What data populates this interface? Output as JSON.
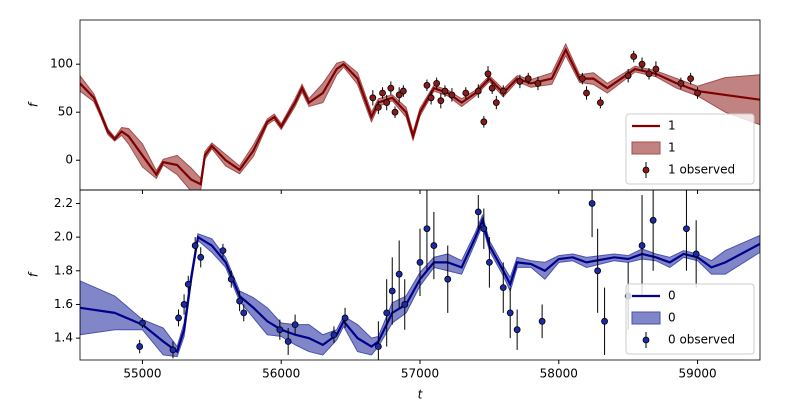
{
  "chart_data": [
    {
      "type": "line",
      "ylabel": "f",
      "xlim": [
        54550,
        59450
      ],
      "ylim": [
        -31,
        146
      ],
      "yticks": [
        0,
        50,
        100
      ],
      "legend": "lower right",
      "x": [
        54550,
        54650,
        54700,
        54750,
        54800,
        54850,
        54900,
        55000,
        55100,
        55150,
        55250,
        55350,
        55420,
        55450,
        55500,
        55600,
        55700,
        55800,
        55900,
        55950,
        56000,
        56100,
        56150,
        56200,
        56300,
        56400,
        56450,
        56550,
        56650,
        56700,
        56800,
        56900,
        56950,
        57000,
        57100,
        57200,
        57300,
        57400,
        57500,
        57600,
        57700,
        57800,
        57950,
        58050,
        58150,
        58250,
        58350,
        58450,
        58550,
        58700,
        58850,
        59000,
        59200,
        59450
      ],
      "series": [
        {
          "name": "1",
          "color": "#800000",
          "values": [
            80,
            65,
            48,
            30,
            22,
            30,
            25,
            5,
            -15,
            -2,
            -5,
            -20,
            -25,
            5,
            15,
            0,
            -10,
            10,
            40,
            45,
            35,
            60,
            75,
            60,
            70,
            95,
            100,
            85,
            45,
            60,
            65,
            50,
            25,
            50,
            75,
            70,
            60,
            70,
            85,
            70,
            85,
            80,
            85,
            115,
            85,
            85,
            75,
            85,
            95,
            90,
            80,
            72,
            68,
            63
          ]
        },
        {
          "name": "1",
          "color": "#a64d4d",
          "lower": [
            72,
            61,
            45,
            27,
            20,
            26,
            17,
            -7,
            -19,
            -5,
            -15,
            -32,
            -31,
            1,
            12,
            -6,
            -14,
            4,
            37,
            42,
            32,
            56,
            71,
            56,
            60,
            89,
            97,
            79,
            40,
            56,
            62,
            45,
            21,
            46,
            72,
            67,
            56,
            67,
            82,
            66,
            82,
            76,
            79,
            109,
            81,
            79,
            70,
            81,
            92,
            87,
            75,
            67,
            50,
            37
          ],
          "upper": [
            88,
            69,
            51,
            33,
            24,
            34,
            33,
            17,
            -11,
            1,
            5,
            -8,
            -19,
            9,
            18,
            6,
            -6,
            16,
            43,
            48,
            38,
            64,
            79,
            64,
            80,
            101,
            103,
            91,
            50,
            64,
            68,
            55,
            29,
            54,
            78,
            73,
            64,
            73,
            88,
            74,
            88,
            84,
            91,
            121,
            89,
            91,
            80,
            89,
            98,
            93,
            85,
            77,
            86,
            89
          ]
        },
        {
          "name": "1 observed",
          "color": "#8b1a1a",
          "x": [
            56660,
            56700,
            56730,
            56760,
            56790,
            56820,
            56850,
            56880,
            57050,
            57080,
            57120,
            57150,
            57180,
            57230,
            57330,
            57420,
            57460,
            57490,
            57520,
            57550,
            57600,
            57720,
            57780,
            57850,
            58170,
            58200,
            58300,
            58500,
            58540,
            58600,
            58650,
            58700,
            58880,
            58950,
            59000
          ],
          "values": [
            65,
            55,
            70,
            60,
            75,
            50,
            68,
            72,
            78,
            65,
            80,
            62,
            72,
            68,
            70,
            72,
            40,
            90,
            75,
            60,
            72,
            82,
            85,
            80,
            85,
            70,
            60,
            88,
            108,
            100,
            90,
            95,
            80,
            85,
            70
          ],
          "errors": [
            8,
            7,
            6,
            8,
            7,
            6,
            8,
            6,
            6,
            7,
            6,
            8,
            6,
            7,
            6,
            7,
            6,
            8,
            6,
            7,
            6,
            7,
            6,
            7,
            6,
            7,
            6,
            7,
            6,
            7,
            6,
            8,
            6,
            6,
            6
          ]
        }
      ]
    },
    {
      "type": "line",
      "ylabel": "f",
      "xlabel": "t",
      "xlim": [
        54550,
        59450
      ],
      "ylim": [
        1.27,
        2.28
      ],
      "xticks": [
        55000,
        56000,
        57000,
        58000,
        59000
      ],
      "yticks": [
        1.4,
        1.6,
        1.8,
        {
          "value": 2,
          "label": "2.0"
        },
        2.2
      ],
      "legend": "lower right",
      "x": [
        54550,
        54800,
        55000,
        55150,
        55250,
        55300,
        55350,
        55400,
        55500,
        55600,
        55650,
        55700,
        55800,
        55900,
        56000,
        56100,
        56200,
        56300,
        56400,
        56450,
        56550,
        56650,
        56700,
        56800,
        56900,
        57000,
        57100,
        57200,
        57300,
        57400,
        57450,
        57500,
        57600,
        57650,
        57700,
        57800,
        57900,
        58000,
        58100,
        58200,
        58400,
        58500,
        58600,
        58700,
        58800,
        58900,
        59000,
        59100,
        59200,
        59450
      ],
      "series": [
        {
          "name": "0",
          "color": "#00008b",
          "values": [
            1.58,
            1.55,
            1.48,
            1.38,
            1.32,
            1.45,
            1.75,
            2.0,
            1.95,
            1.85,
            1.75,
            1.65,
            1.58,
            1.5,
            1.45,
            1.42,
            1.4,
            1.36,
            1.42,
            1.5,
            1.4,
            1.35,
            1.38,
            1.55,
            1.6,
            1.75,
            1.85,
            1.85,
            1.82,
            2.0,
            2.1,
            1.95,
            1.8,
            1.72,
            1.85,
            1.84,
            1.8,
            1.87,
            1.88,
            1.85,
            1.88,
            1.87,
            1.9,
            1.88,
            1.85,
            1.9,
            1.88,
            1.82,
            1.85,
            1.96
          ]
        },
        {
          "name": "0",
          "color": "#4a52b0",
          "lower": [
            1.42,
            1.45,
            1.45,
            1.3,
            1.29,
            1.41,
            1.72,
            1.98,
            1.91,
            1.82,
            1.72,
            1.62,
            1.52,
            1.42,
            1.41,
            1.36,
            1.32,
            1.3,
            1.39,
            1.47,
            1.32,
            1.3,
            1.35,
            1.49,
            1.55,
            1.71,
            1.82,
            1.8,
            1.78,
            1.97,
            2.07,
            1.92,
            1.77,
            1.68,
            1.82,
            1.82,
            1.75,
            1.85,
            1.86,
            1.82,
            1.86,
            1.85,
            1.87,
            1.86,
            1.82,
            1.88,
            1.86,
            1.78,
            1.78,
            1.91
          ],
          "upper": [
            1.74,
            1.65,
            1.51,
            1.46,
            1.35,
            1.49,
            1.78,
            2.02,
            1.99,
            1.88,
            1.78,
            1.68,
            1.64,
            1.58,
            1.49,
            1.48,
            1.48,
            1.42,
            1.45,
            1.53,
            1.48,
            1.4,
            1.41,
            1.61,
            1.65,
            1.79,
            1.88,
            1.9,
            1.86,
            2.03,
            2.13,
            1.98,
            1.83,
            1.76,
            1.88,
            1.86,
            1.85,
            1.89,
            1.9,
            1.88,
            1.9,
            1.89,
            1.93,
            1.9,
            1.88,
            1.92,
            1.9,
            1.86,
            1.92,
            2.01
          ]
        },
        {
          "name": "0 observed",
          "color": "#1a2aa8",
          "x": [
            54980,
            55000,
            55220,
            55260,
            55300,
            55330,
            55380,
            55420,
            55580,
            55640,
            55700,
            55730,
            55990,
            56050,
            56100,
            56380,
            56460,
            56700,
            56760,
            56800,
            56850,
            56890,
            57000,
            57050,
            57100,
            57200,
            57420,
            57460,
            57500,
            57600,
            57650,
            57700,
            57880,
            58240,
            58280,
            58330,
            58500,
            58600,
            58680,
            58920,
            58990
          ],
          "values": [
            1.35,
            1.49,
            1.33,
            1.52,
            1.6,
            1.72,
            1.95,
            1.88,
            1.92,
            1.75,
            1.62,
            1.55,
            1.45,
            1.38,
            1.48,
            1.42,
            1.52,
            1.35,
            1.55,
            1.68,
            1.78,
            1.6,
            1.85,
            2.05,
            1.95,
            1.75,
            2.15,
            2.05,
            1.85,
            1.7,
            1.55,
            1.45,
            1.5,
            2.2,
            1.8,
            1.5,
            1.65,
            1.95,
            2.1,
            2.05,
            1.9
          ],
          "errors": [
            0.04,
            0.03,
            0.05,
            0.05,
            0.06,
            0.05,
            0.05,
            0.06,
            0.04,
            0.05,
            0.06,
            0.05,
            0.06,
            0.08,
            0.06,
            0.05,
            0.06,
            0.15,
            0.2,
            0.2,
            0.2,
            0.15,
            0.2,
            0.25,
            0.2,
            0.2,
            0.1,
            0.12,
            0.15,
            0.15,
            0.15,
            0.12,
            0.1,
            0.2,
            0.25,
            0.2,
            0.2,
            0.3,
            0.3,
            0.25,
            0.2
          ]
        }
      ]
    }
  ]
}
